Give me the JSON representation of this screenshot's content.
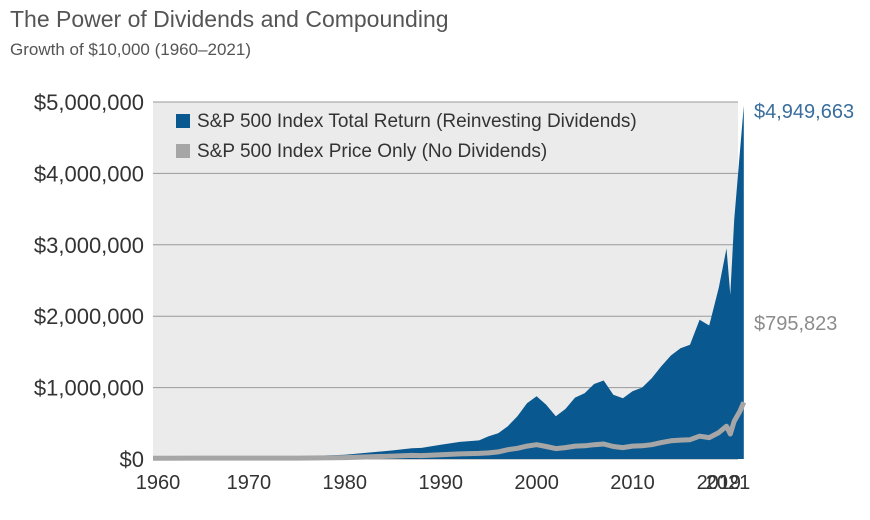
{
  "title": "The Power of Dividends and Compounding",
  "subtitle": "Growth of $10,000 (1960–2021)",
  "colors": {
    "total_return": "#0a5890",
    "price_only": "#a6a6a6",
    "plot_bg": "#ebebeb",
    "grid": "#9a9a9a",
    "total_label": "#3a6e9c",
    "price_label": "#8c8c8c"
  },
  "chart_data": {
    "type": "area",
    "title": "The Power of Dividends and Compounding",
    "subtitle": "Growth of $10,000 (1960–2021)",
    "xlabel": "",
    "ylabel": "",
    "xlim": [
      1960,
      2021
    ],
    "ylim": [
      0,
      5000000
    ],
    "x_ticks": [
      {
        "value": 1960,
        "label": "1960"
      },
      {
        "value": 1970,
        "label": "1970"
      },
      {
        "value": 1980,
        "label": "1980"
      },
      {
        "value": 1990,
        "label": "1990"
      },
      {
        "value": 2000,
        "label": "2000"
      },
      {
        "value": 2010,
        "label": "2010"
      },
      {
        "value": 2019,
        "label": "2019"
      },
      {
        "value": 2021,
        "label": "2021"
      }
    ],
    "y_ticks": [
      {
        "value": 0,
        "label": "$0"
      },
      {
        "value": 1000000,
        "label": "$1,000,000"
      },
      {
        "value": 2000000,
        "label": "$2,000,000"
      },
      {
        "value": 3000000,
        "label": "$3,000,000"
      },
      {
        "value": 4000000,
        "label": "$4,000,000"
      },
      {
        "value": 5000000,
        "label": "$5,000,000"
      }
    ],
    "grid": true,
    "legend_position": "top-left",
    "series": [
      {
        "name": "S&P 500 Index Total Return (Reinvesting Dividends)",
        "style": "area",
        "end_label": "$4,949,663",
        "points": [
          [
            1960,
            10000
          ],
          [
            1965,
            20000
          ],
          [
            1970,
            25000
          ],
          [
            1975,
            35000
          ],
          [
            1980,
            60000
          ],
          [
            1985,
            120000
          ],
          [
            1987,
            150000
          ],
          [
            1988,
            155000
          ],
          [
            1990,
            200000
          ],
          [
            1992,
            240000
          ],
          [
            1994,
            260000
          ],
          [
            1995,
            320000
          ],
          [
            1996,
            360000
          ],
          [
            1997,
            460000
          ],
          [
            1998,
            600000
          ],
          [
            1999,
            780000
          ],
          [
            2000,
            880000
          ],
          [
            2001,
            760000
          ],
          [
            2002,
            600000
          ],
          [
            2003,
            700000
          ],
          [
            2004,
            860000
          ],
          [
            2005,
            920000
          ],
          [
            2006,
            1050000
          ],
          [
            2007,
            1100000
          ],
          [
            2008,
            900000
          ],
          [
            2009,
            850000
          ],
          [
            2010,
            950000
          ],
          [
            2011,
            1000000
          ],
          [
            2012,
            1130000
          ],
          [
            2013,
            1300000
          ],
          [
            2014,
            1450000
          ],
          [
            2015,
            1550000
          ],
          [
            2016,
            1600000
          ],
          [
            2017,
            1950000
          ],
          [
            2018,
            1870000
          ],
          [
            2019,
            2400000
          ],
          [
            2019.8,
            2950000
          ],
          [
            2020.2,
            2300000
          ],
          [
            2020.6,
            3350000
          ],
          [
            2021.2,
            4300000
          ],
          [
            2021.6,
            4949663
          ]
        ]
      },
      {
        "name": "S&P 500 Index Price Only (No Dividends)",
        "style": "line",
        "end_label": "$795,823",
        "points": [
          [
            1960,
            10000
          ],
          [
            1965,
            12000
          ],
          [
            1970,
            12000
          ],
          [
            1975,
            13000
          ],
          [
            1980,
            20000
          ],
          [
            1985,
            40000
          ],
          [
            1987,
            50000
          ],
          [
            1988,
            48000
          ],
          [
            1990,
            60000
          ],
          [
            1992,
            72000
          ],
          [
            1994,
            78000
          ],
          [
            1995,
            85000
          ],
          [
            1996,
            100000
          ],
          [
            1997,
            130000
          ],
          [
            1998,
            150000
          ],
          [
            1999,
            180000
          ],
          [
            2000,
            200000
          ],
          [
            2001,
            175000
          ],
          [
            2002,
            145000
          ],
          [
            2003,
            160000
          ],
          [
            2004,
            180000
          ],
          [
            2005,
            185000
          ],
          [
            2006,
            200000
          ],
          [
            2007,
            210000
          ],
          [
            2008,
            175000
          ],
          [
            2009,
            160000
          ],
          [
            2010,
            180000
          ],
          [
            2011,
            185000
          ],
          [
            2012,
            200000
          ],
          [
            2013,
            230000
          ],
          [
            2014,
            255000
          ],
          [
            2015,
            265000
          ],
          [
            2016,
            270000
          ],
          [
            2017,
            320000
          ],
          [
            2018,
            300000
          ],
          [
            2019,
            370000
          ],
          [
            2019.8,
            460000
          ],
          [
            2020.2,
            350000
          ],
          [
            2020.6,
            530000
          ],
          [
            2021.2,
            670000
          ],
          [
            2021.6,
            795823
          ]
        ]
      }
    ]
  }
}
